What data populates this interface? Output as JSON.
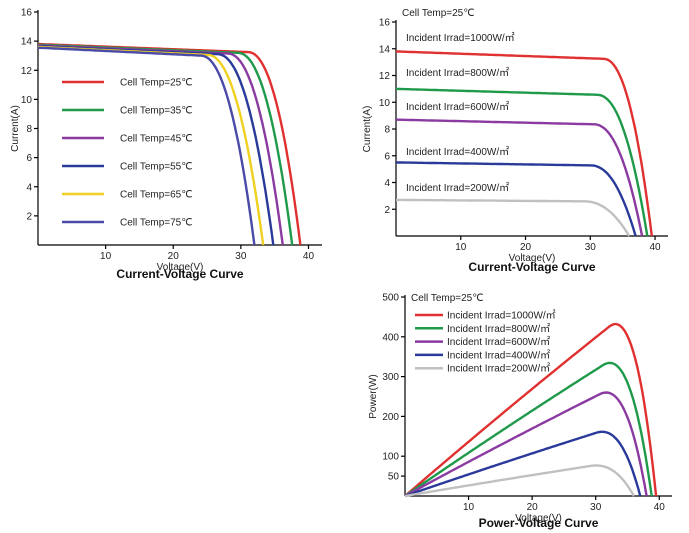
{
  "chart_data": [
    {
      "type": "line",
      "title": "Current-Voltage Curve",
      "xlabel": "Voltage(V)",
      "ylabel": "Current(A)",
      "xlim": [
        0,
        42
      ],
      "ylim": [
        0,
        16
      ],
      "x_ticks": [
        10,
        20,
        30,
        40
      ],
      "y_ticks": [
        2,
        4,
        6,
        8,
        10,
        12,
        14,
        16
      ],
      "legend_position": "left",
      "series": [
        {
          "name": "Cell Temp=25℃",
          "color": "#e03030",
          "isc": 13.8,
          "voc": 38.8,
          "knee": 31,
          "x_end": 38.8
        },
        {
          "name": "Cell Temp=35℃",
          "color": "#1f9a4a",
          "isc": 13.75,
          "voc": 37.6,
          "knee": 29.5,
          "x_end": 37.6
        },
        {
          "name": "Cell Temp=45℃",
          "color": "#8a3aa0",
          "isc": 13.7,
          "voc": 36.2,
          "knee": 28,
          "x_end": 36.2
        },
        {
          "name": "Cell Temp=55℃",
          "color": "#2a3a9a",
          "isc": 13.65,
          "voc": 34.8,
          "knee": 26.5,
          "x_end": 34.8
        },
        {
          "name": "Cell Temp=65℃",
          "color": "#f0d020",
          "isc": 13.6,
          "voc": 33.3,
          "knee": 25,
          "x_end": 33.3
        },
        {
          "name": "Cell Temp=75℃",
          "color": "#4a4aa8",
          "isc": 13.55,
          "voc": 32,
          "knee": 24,
          "x_end": 32
        }
      ]
    },
    {
      "type": "line",
      "title": "Current-Voltage Curve",
      "subtitle": "Cell Temp=25℃",
      "xlabel": "Voltage(V)",
      "ylabel": "Current(A)",
      "xlim": [
        0,
        42
      ],
      "ylim": [
        0,
        16
      ],
      "x_ticks": [
        10,
        20,
        30,
        40
      ],
      "y_ticks": [
        2,
        4,
        6,
        8,
        10,
        12,
        14,
        16
      ],
      "series": [
        {
          "name": "Incident Irrad=1000W/㎡",
          "color": "#e03030",
          "isc": 13.8,
          "voc": 39.5,
          "knee": 32
        },
        {
          "name": "Incident Irrad=800W/㎡",
          "color": "#1f9a4a",
          "isc": 11.0,
          "voc": 38.8,
          "knee": 31
        },
        {
          "name": "Incident Irrad=600W/㎡",
          "color": "#8a3aa0",
          "isc": 8.7,
          "voc": 38.0,
          "knee": 30.5
        },
        {
          "name": "Incident Irrad=400W/㎡",
          "color": "#2a3a9a",
          "isc": 5.5,
          "voc": 37.0,
          "knee": 30
        },
        {
          "name": "Incident Irrad=200W/㎡",
          "color": "#c0c0c0",
          "isc": 2.7,
          "voc": 36.0,
          "knee": 29
        }
      ]
    },
    {
      "type": "line",
      "title": "Power-Voltage Curve",
      "subtitle": "Cell Temp=25℃",
      "xlabel": "Voltage(V)",
      "ylabel": "Power(W)",
      "xlim": [
        0,
        42
      ],
      "ylim": [
        0,
        500
      ],
      "x_ticks": [
        10,
        20,
        30,
        40
      ],
      "y_ticks": [
        50,
        100,
        200,
        300,
        400,
        500
      ],
      "legend_position": "top-left",
      "series": [
        {
          "name": "Incident Irrad=1000W/㎡",
          "color": "#e03030",
          "isc": 13.8,
          "voc": 39.5,
          "knee": 32
        },
        {
          "name": "Incident Irrad=800W/㎡",
          "color": "#1f9a4a",
          "isc": 11.0,
          "voc": 38.8,
          "knee": 31
        },
        {
          "name": "Incident Irrad=600W/㎡",
          "color": "#8a3aa0",
          "isc": 8.7,
          "voc": 38.0,
          "knee": 30.5
        },
        {
          "name": "Incident Irrad=400W/㎡",
          "color": "#2a3a9a",
          "isc": 5.5,
          "voc": 37.0,
          "knee": 30
        },
        {
          "name": "Incident Irrad=200W/㎡",
          "color": "#c0c0c0",
          "isc": 2.7,
          "voc": 36.0,
          "knee": 29
        }
      ]
    }
  ]
}
